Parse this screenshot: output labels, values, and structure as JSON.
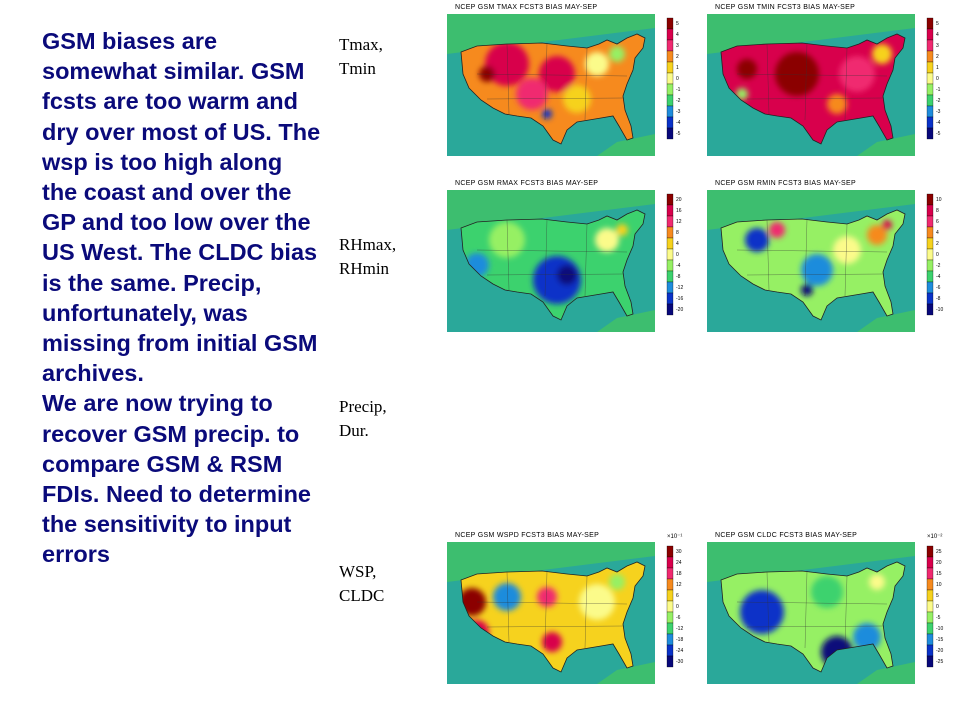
{
  "body_text": {
    "paragraph_1": "GSM biases are somewhat similar. GSM fcsts are too warm and dry over most of US. The wsp is too high along the coast and over the GP and too low over the US West. The CLDC bias is the same. Precip, unfortunately, was missing from initial GSM archives.",
    "paragraph_2": "We are now trying to recover GSM precip. to compare GSM & RSM FDIs. Need to determine the sensitivity to input errors"
  },
  "row_labels": [
    {
      "line1": "Tmax,",
      "line2": "Tmin"
    },
    {
      "line1": "RHmax,",
      "line2": "RHmin"
    },
    {
      "line1": "Precip,",
      "line2": "Dur."
    },
    {
      "line1": "WSP,",
      "line2": "CLDC"
    }
  ],
  "maps": [
    {
      "title": "NCEP GSM   TMAX FCST3 BIAS MAY-SEP",
      "scale_label": "",
      "ticks": [
        "5",
        "4",
        "3",
        "2",
        "1",
        "0",
        "-1",
        "-2",
        "-3",
        "-4",
        "-5"
      ],
      "pattern": "warm"
    },
    {
      "title": "NCEP GSM   TMIN FCST3 BIAS MAY-SEP",
      "scale_label": "",
      "ticks": [
        "5",
        "4",
        "3",
        "2",
        "1",
        "0",
        "-1",
        "-2",
        "-3",
        "-4",
        "-5"
      ],
      "pattern": "hot"
    },
    {
      "title": "NCEP GSM   RMAX FCST3 BIAS MAY-SEP",
      "scale_label": "",
      "ticks": [
        "20",
        "16",
        "12",
        "8",
        "4",
        "0",
        "-4",
        "-8",
        "-12",
        "-16",
        "-20"
      ],
      "pattern": "dry"
    },
    {
      "title": "NCEP GSM   RMIN FCST3 BIAS MAY-SEP",
      "scale_label": "",
      "ticks": [
        "10",
        "8",
        "6",
        "4",
        "2",
        "0",
        "-2",
        "-4",
        "-6",
        "-8",
        "-10"
      ],
      "pattern": "mixed"
    },
    {
      "title": "NCEP GSM   WSPD FCST3 BIAS MAY-SEP",
      "scale_label": "×10⁻¹",
      "ticks": [
        "30",
        "24",
        "18",
        "12",
        "6",
        "0",
        "-6",
        "-12",
        "-18",
        "-24",
        "-30"
      ],
      "pattern": "wind"
    },
    {
      "title": "NCEP GSM   CLDC FCST3 BIAS MAY-SEP",
      "scale_label": "×10⁻²",
      "ticks": [
        "25",
        "20",
        "15",
        "10",
        "5",
        "0",
        "-5",
        "-10",
        "-15",
        "-20",
        "-25"
      ],
      "pattern": "cloud"
    }
  ],
  "colors": {
    "text": "#0a0a7a",
    "ocean": "#2aa89a",
    "scale": [
      "#8b0000",
      "#d8004c",
      "#f02a70",
      "#f68a1e",
      "#f6d21e",
      "#fbfb8a",
      "#96f064",
      "#3cd26e",
      "#1e8cdc",
      "#0a32c8",
      "#08087a"
    ]
  }
}
